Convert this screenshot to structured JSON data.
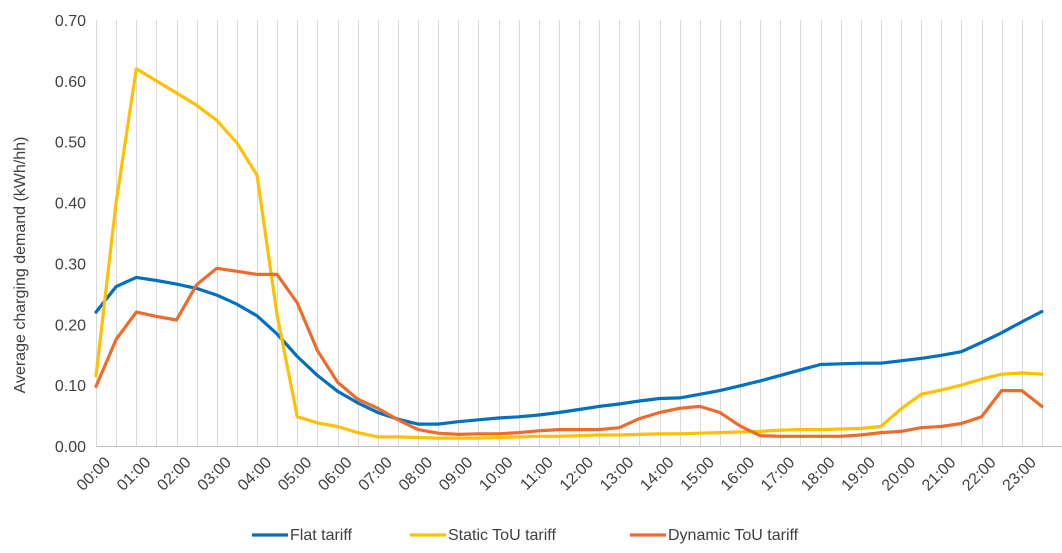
{
  "chart_data": {
    "type": "line",
    "ylabel": "Average charging  demand (kWh/hh)",
    "ylim": [
      0,
      0.7
    ],
    "yticks": [
      "0.00",
      "0.10",
      "0.20",
      "0.30",
      "0.40",
      "0.50",
      "0.60",
      "0.70"
    ],
    "xticks": [
      "00:00",
      "01:00",
      "02:00",
      "03:00",
      "04:00",
      "05:00",
      "06:00",
      "07:00",
      "08:00",
      "09:00",
      "10:00",
      "11:00",
      "12:00",
      "13:00",
      "14:00",
      "15:00",
      "16:00",
      "17:00",
      "18:00",
      "19:00",
      "20:00",
      "21:00",
      "22:00",
      "23:00"
    ],
    "x_interval": "half-hourly",
    "grid": "vertical",
    "legend_position": "bottom",
    "series": [
      {
        "name": "Flat tariff",
        "color": "#0070c0",
        "values": [
          0.22,
          0.262,
          0.277,
          0.272,
          0.266,
          0.259,
          0.248,
          0.233,
          0.214,
          0.184,
          0.147,
          0.116,
          0.09,
          0.071,
          0.055,
          0.044,
          0.036,
          0.036,
          0.04,
          0.043,
          0.046,
          0.048,
          0.051,
          0.055,
          0.06,
          0.065,
          0.069,
          0.074,
          0.078,
          0.079,
          0.085,
          0.091,
          0.099,
          0.107,
          0.116,
          0.125,
          0.134,
          0.135,
          0.136,
          0.136,
          0.14,
          0.144,
          0.149,
          0.155,
          0.17,
          0.186,
          0.204,
          0.221
        ]
      },
      {
        "name": "Static ToU tariff",
        "color": "#ffc000",
        "values": [
          0.115,
          0.4,
          0.62,
          0.6,
          0.58,
          0.56,
          0.535,
          0.498,
          0.445,
          0.215,
          0.048,
          0.038,
          0.032,
          0.022,
          0.015,
          0.015,
          0.014,
          0.013,
          0.013,
          0.013,
          0.014,
          0.015,
          0.016,
          0.016,
          0.017,
          0.018,
          0.018,
          0.019,
          0.02,
          0.02,
          0.021,
          0.022,
          0.023,
          0.024,
          0.026,
          0.027,
          0.027,
          0.028,
          0.029,
          0.032,
          0.061,
          0.085,
          0.092,
          0.1,
          0.11,
          0.118,
          0.12,
          0.118
        ]
      },
      {
        "name": "Dynamic ToU tariff",
        "color": "#ed6c2d",
        "values": [
          0.098,
          0.175,
          0.22,
          0.213,
          0.207,
          0.265,
          0.292,
          0.287,
          0.282,
          0.282,
          0.235,
          0.157,
          0.105,
          0.077,
          0.062,
          0.043,
          0.027,
          0.021,
          0.019,
          0.02,
          0.02,
          0.022,
          0.025,
          0.027,
          0.027,
          0.027,
          0.03,
          0.045,
          0.055,
          0.062,
          0.065,
          0.055,
          0.033,
          0.017,
          0.016,
          0.016,
          0.016,
          0.016,
          0.018,
          0.022,
          0.024,
          0.03,
          0.032,
          0.037,
          0.048,
          0.091,
          0.091,
          0.065
        ]
      }
    ]
  }
}
